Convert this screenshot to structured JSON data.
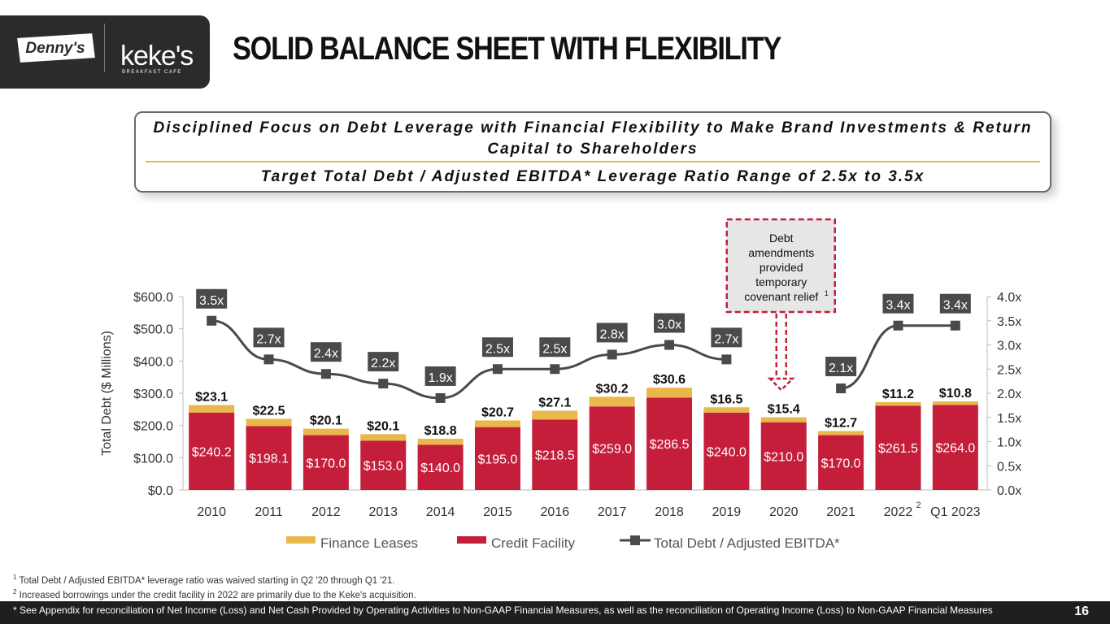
{
  "header": {
    "title": "SOLID BALANCE SHEET WITH FLEXIBILITY",
    "logo_dennys": "Denny's",
    "logo_kekes": "keke's",
    "logo_kekes_sub": "BREAKFAST CAFE"
  },
  "callout": {
    "line1": "Disciplined Focus on Debt Leverage with Financial Flexibility to Make Brand Investments & Return Capital to Shareholders",
    "line2": "Target Total Debt / Adjusted EBITDA* Leverage Ratio Range of 2.5x to 3.5x"
  },
  "chart_data": {
    "type": "bar",
    "stacked": true,
    "categories": [
      "2010",
      "2011",
      "2012",
      "2013",
      "2014",
      "2015",
      "2016",
      "2017",
      "2018",
      "2019",
      "2020",
      "2021",
      "2022",
      "Q1 2023"
    ],
    "category_superscripts": {
      "2022": "2"
    },
    "ylabel": "Total Debt ($ Millions)",
    "ylim": [
      0,
      600
    ],
    "yticks": [
      "$0.0",
      "$100.0",
      "$200.0",
      "$300.0",
      "$400.0",
      "$500.0",
      "$600.0"
    ],
    "y2lim": [
      0,
      4.0
    ],
    "y2ticks": [
      "0.0x",
      "0.5x",
      "1.0x",
      "1.5x",
      "2.0x",
      "2.5x",
      "3.0x",
      "3.5x",
      "4.0x"
    ],
    "series": [
      {
        "name": "Credit Facility",
        "color": "#c41e3a",
        "values": [
          240.2,
          198.1,
          170.0,
          153.0,
          140.0,
          195.0,
          218.5,
          259.0,
          286.5,
          240.0,
          210.0,
          170.0,
          261.5,
          264.0
        ],
        "labels": [
          "$240.2",
          "$198.1",
          "$170.0",
          "$153.0",
          "$140.0",
          "$195.0",
          "$218.5",
          "$259.0",
          "$286.5",
          "$240.0",
          "$210.0",
          "$170.0",
          "$261.5",
          "$264.0"
        ]
      },
      {
        "name": "Finance Leases",
        "color": "#e8b84b",
        "values": [
          23.1,
          22.5,
          20.1,
          20.1,
          18.8,
          20.7,
          27.1,
          30.2,
          30.6,
          16.5,
          15.4,
          12.7,
          11.2,
          10.8
        ],
        "labels": [
          "$23.1",
          "$22.5",
          "$20.1",
          "$20.1",
          "$18.8",
          "$20.7",
          "$27.1",
          "$30.2",
          "$30.6",
          "$16.5",
          "$15.4",
          "$12.7",
          "$11.2",
          "$10.8"
        ]
      },
      {
        "name": "Total Debt / Adjusted EBITDA*",
        "axis": "secondary",
        "type": "line",
        "color": "#4a4a4a",
        "values": [
          3.5,
          2.7,
          2.4,
          2.2,
          1.9,
          2.5,
          2.5,
          2.8,
          3.0,
          2.7,
          null,
          2.1,
          3.4,
          3.4
        ],
        "labels": [
          "3.5x",
          "2.7x",
          "2.4x",
          "2.2x",
          "1.9x",
          "2.5x",
          "2.5x",
          "2.8x",
          "3.0x",
          "2.7x",
          "",
          "2.1x",
          "3.4x",
          "3.4x"
        ]
      }
    ],
    "legend": [
      "Finance Leases",
      "Credit Facility",
      "Total Debt / Adjusted EBITDA*"
    ],
    "legend_position": "bottom",
    "annotation": "Debt amendments provided temporary covenant relief",
    "annotation_superscript": "1"
  },
  "footnotes": {
    "n1": "Total Debt / Adjusted EBITDA* leverage ratio was waived starting in Q2 '20 through Q1 '21.",
    "n1_mark": "1",
    "n2": "Increased borrowings under the credit facility in 2022 are primarily due to the Keke's acquisition.",
    "n2_mark": "2",
    "appendix": "* See Appendix for reconciliation of Net Income (Loss) and Net Cash Provided by Operating Activities to Non-GAAP Financial Measures, as well as the reconciliation of Operating Income (Loss) to Non-GAAP Financial Measures"
  },
  "page_number": "16",
  "colors": {
    "credit": "#c41e3a",
    "lease": "#e8b84b",
    "line": "#4a4a4a",
    "accent": "#e8b84b"
  }
}
